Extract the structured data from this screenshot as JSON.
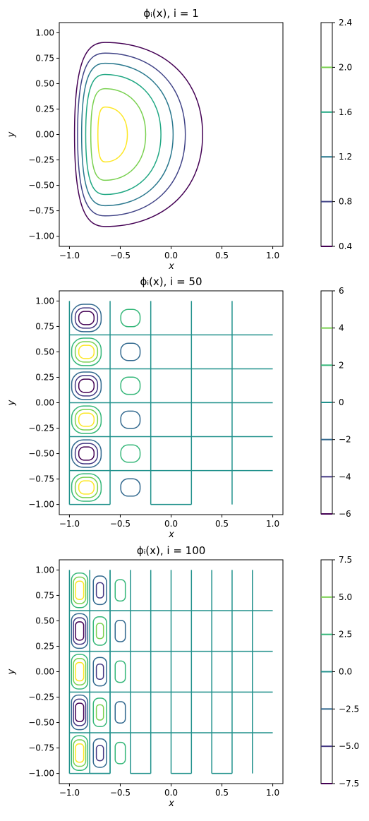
{
  "figure": {
    "background": "#ffffff"
  },
  "chart_data": [
    {
      "type": "contour",
      "title": "ϕᵢ(x), i = 1",
      "xlabel": "x",
      "ylabel": "y",
      "xlim": [
        -1.1,
        1.1
      ],
      "ylim": [
        -1.1,
        1.1
      ],
      "xticks": [
        "−1.0",
        "−0.5",
        "0.0",
        "0.5",
        "1.0"
      ],
      "xtick_values": [
        -1.0,
        -0.5,
        0.0,
        0.5,
        1.0
      ],
      "yticks": [
        "1.00",
        "0.75",
        "0.50",
        "0.25",
        "0.00",
        "−0.25",
        "−0.50",
        "−0.75",
        "−1.00"
      ],
      "ytick_values": [
        1.0,
        0.75,
        0.5,
        0.25,
        0.0,
        -0.25,
        -0.5,
        -0.75,
        -1.0
      ],
      "grid": false,
      "colormap": "viridis",
      "colorbar": {
        "ticks": [
          "2.4",
          "2.0",
          "1.6",
          "1.2",
          "0.8",
          "0.4"
        ],
        "tick_values": [
          2.4,
          2.0,
          1.6,
          1.2,
          0.8,
          0.4
        ],
        "range": [
          0.4,
          2.4
        ],
        "line_levels": [
          {
            "value": 2.0,
            "color": "#7ad151"
          },
          {
            "value": 1.6,
            "color": "#22a884"
          },
          {
            "value": 1.2,
            "color": "#2a788e"
          },
          {
            "value": 0.8,
            "color": "#414487"
          },
          {
            "value": 0.4,
            "color": "#440154"
          }
        ]
      },
      "levels": [
        {
          "value": 0.4,
          "color": "#440154",
          "cx": -0.65,
          "cy": 0.0,
          "left": -0.95,
          "right": 0.31,
          "half_height": 0.905
        },
        {
          "value": 0.8,
          "color": "#414487",
          "cx": -0.65,
          "cy": 0.0,
          "left": -0.92,
          "right": 0.14,
          "half_height": 0.8
        },
        {
          "value": 1.2,
          "color": "#2a788e",
          "cx": -0.65,
          "cy": 0.0,
          "left": -0.88,
          "right": 0.02,
          "half_height": 0.7
        },
        {
          "value": 1.6,
          "color": "#22a884",
          "cx": -0.65,
          "cy": 0.0,
          "left": -0.84,
          "right": -0.1,
          "half_height": 0.59
        },
        {
          "value": 2.0,
          "color": "#7ad151",
          "cx": -0.65,
          "cy": 0.0,
          "left": -0.79,
          "right": -0.25,
          "half_height": 0.45
        },
        {
          "value": 2.4,
          "color": "#fde725",
          "cx": -0.65,
          "cy": 0.0,
          "left": -0.72,
          "right": -0.43,
          "half_height": 0.27
        }
      ]
    },
    {
      "type": "contour",
      "title": "ϕᵢ(x), i = 50",
      "xlabel": "x",
      "ylabel": "y",
      "xlim": [
        -1.1,
        1.1
      ],
      "ylim": [
        -1.1,
        1.1
      ],
      "xticks": [
        "−1.0",
        "−0.5",
        "0.0",
        "0.5",
        "1.0"
      ],
      "xtick_values": [
        -1.0,
        -0.5,
        0.0,
        0.5,
        1.0
      ],
      "yticks": [
        "1.00",
        "0.75",
        "0.50",
        "0.25",
        "0.00",
        "−0.25",
        "−0.50",
        "−0.75",
        "−1.00"
      ],
      "ytick_values": [
        1.0,
        0.75,
        0.5,
        0.25,
        0.0,
        -0.25,
        -0.5,
        -0.75,
        -1.0
      ],
      "grid": false,
      "colormap": "viridis",
      "colorbar": {
        "ticks": [
          "6",
          "4",
          "2",
          "0",
          "−2",
          "−4",
          "−6"
        ],
        "tick_values": [
          6,
          4,
          2,
          0,
          -2,
          -4,
          -6
        ],
        "range": [
          -6,
          6
        ],
        "line_levels": [
          {
            "value": 4,
            "color": "#7ad151"
          },
          {
            "value": 2,
            "color": "#35b779"
          },
          {
            "value": 0,
            "color": "#21918c"
          },
          {
            "value": -2,
            "color": "#31688e"
          },
          {
            "value": -4,
            "color": "#443983"
          },
          {
            "value": -6,
            "color": "#440154"
          }
        ]
      },
      "zero_color": "#21918c",
      "zero_vertical_x": [
        -0.2,
        0.2,
        0.6
      ],
      "zero_horizontal_y": [
        0.667,
        0.333,
        0.0,
        -0.333,
        -0.667
      ],
      "first_column": {
        "x0": -1.0,
        "x1": -0.6
      },
      "domain": {
        "x0": -1.0,
        "x1": 1.0,
        "y0": -1.0,
        "y1": 1.0
      },
      "cells": [
        {
          "cx": -0.833,
          "cy": 0.833,
          "sign": -1,
          "kind": "main"
        },
        {
          "cx": -0.833,
          "cy": 0.5,
          "sign": 1,
          "kind": "main"
        },
        {
          "cx": -0.833,
          "cy": 0.167,
          "sign": -1,
          "kind": "main"
        },
        {
          "cx": -0.833,
          "cy": -0.167,
          "sign": 1,
          "kind": "main"
        },
        {
          "cx": -0.833,
          "cy": -0.5,
          "sign": -1,
          "kind": "main"
        },
        {
          "cx": -0.833,
          "cy": -0.833,
          "sign": 1,
          "kind": "main"
        },
        {
          "cx": -0.4,
          "cy": 0.833,
          "sign": 1,
          "kind": "side"
        },
        {
          "cx": -0.4,
          "cy": 0.5,
          "sign": -1,
          "kind": "side"
        },
        {
          "cx": -0.4,
          "cy": 0.167,
          "sign": 1,
          "kind": "side"
        },
        {
          "cx": -0.4,
          "cy": -0.167,
          "sign": -1,
          "kind": "side"
        },
        {
          "cx": -0.4,
          "cy": -0.5,
          "sign": 1,
          "kind": "side"
        },
        {
          "cx": -0.4,
          "cy": -0.833,
          "sign": -1,
          "kind": "side"
        }
      ],
      "main_rings": [
        {
          "neg": "#31688e",
          "pos": "#35b779",
          "hw": 0.145,
          "hh": 0.135
        },
        {
          "neg": "#443983",
          "pos": "#7ad151",
          "hw": 0.11,
          "hh": 0.1
        },
        {
          "neg": "#440154",
          "pos": "#fde725",
          "hw": 0.075,
          "hh": 0.065
        }
      ],
      "side_rings": [
        {
          "neg": "#31688e",
          "pos": "#35b779",
          "hw": 0.095,
          "hh": 0.085
        }
      ]
    },
    {
      "type": "contour",
      "title": "ϕᵢ(x), i = 100",
      "xlabel": "x",
      "ylabel": "y",
      "xlim": [
        -1.1,
        1.1
      ],
      "ylim": [
        -1.1,
        1.1
      ],
      "xticks": [
        "−1.0",
        "−0.5",
        "0.0",
        "0.5",
        "1.0"
      ],
      "xtick_values": [
        -1.0,
        -0.5,
        0.0,
        0.5,
        1.0
      ],
      "yticks": [
        "1.00",
        "0.75",
        "0.50",
        "0.25",
        "0.00",
        "−0.25",
        "−0.50",
        "−0.75",
        "−1.00"
      ],
      "ytick_values": [
        1.0,
        0.75,
        0.5,
        0.25,
        0.0,
        -0.25,
        -0.5,
        -0.75,
        -1.0
      ],
      "grid": false,
      "colormap": "viridis",
      "colorbar": {
        "ticks": [
          "7.5",
          "5.0",
          "2.5",
          "0.0",
          "−2.5",
          "−5.0",
          "−7.5"
        ],
        "tick_values": [
          7.5,
          5.0,
          2.5,
          0.0,
          -2.5,
          -5.0,
          -7.5
        ],
        "range": [
          -7.5,
          7.5
        ],
        "line_levels": [
          {
            "value": 5.0,
            "color": "#7ad151"
          },
          {
            "value": 2.5,
            "color": "#35b779"
          },
          {
            "value": 0.0,
            "color": "#21918c"
          },
          {
            "value": -2.5,
            "color": "#31688e"
          },
          {
            "value": -5.0,
            "color": "#443983"
          },
          {
            "value": -7.5,
            "color": "#440154"
          }
        ]
      },
      "zero_color": "#21918c",
      "zero_vertical_x": [
        -0.8,
        -0.6,
        -0.4,
        -0.2,
        0.0,
        0.2,
        0.4,
        0.6,
        0.8
      ],
      "zero_horizontal_y": [
        0.6,
        0.2,
        -0.2,
        -0.6
      ],
      "first_column": {
        "x0": -1.0,
        "x1": -0.6
      },
      "domain": {
        "x0": -1.0,
        "x1": 1.0,
        "y0": -1.0,
        "y1": 1.0
      },
      "cells": [
        {
          "cx": -0.9,
          "cy": 0.8,
          "sign": 1,
          "kind": "a"
        },
        {
          "cx": -0.9,
          "cy": 0.4,
          "sign": -1,
          "kind": "a"
        },
        {
          "cx": -0.9,
          "cy": 0.0,
          "sign": 1,
          "kind": "a"
        },
        {
          "cx": -0.9,
          "cy": -0.4,
          "sign": -1,
          "kind": "a"
        },
        {
          "cx": -0.9,
          "cy": -0.8,
          "sign": 1,
          "kind": "a"
        },
        {
          "cx": -0.7,
          "cy": 0.8,
          "sign": -1,
          "kind": "b"
        },
        {
          "cx": -0.7,
          "cy": 0.4,
          "sign": 1,
          "kind": "b"
        },
        {
          "cx": -0.7,
          "cy": 0.0,
          "sign": -1,
          "kind": "b"
        },
        {
          "cx": -0.7,
          "cy": -0.4,
          "sign": 1,
          "kind": "b"
        },
        {
          "cx": -0.7,
          "cy": -0.8,
          "sign": -1,
          "kind": "b"
        },
        {
          "cx": -0.5,
          "cy": 0.8,
          "sign": 1,
          "kind": "c"
        },
        {
          "cx": -0.5,
          "cy": 0.4,
          "sign": -1,
          "kind": "c"
        },
        {
          "cx": -0.5,
          "cy": 0.0,
          "sign": 1,
          "kind": "c"
        },
        {
          "cx": -0.5,
          "cy": -0.4,
          "sign": -1,
          "kind": "c"
        },
        {
          "cx": -0.5,
          "cy": -0.8,
          "sign": 1,
          "kind": "c"
        }
      ],
      "ring_sets": {
        "a": [
          {
            "neg": "#31688e",
            "pos": "#35b779",
            "hw": 0.08,
            "hh": 0.17
          },
          {
            "neg": "#443983",
            "pos": "#7ad151",
            "hw": 0.06,
            "hh": 0.13
          },
          {
            "neg": "#440154",
            "pos": "#fde725",
            "hw": 0.04,
            "hh": 0.09
          }
        ],
        "b": [
          {
            "neg": "#31688e",
            "pos": "#35b779",
            "hw": 0.065,
            "hh": 0.14
          },
          {
            "neg": "#443983",
            "pos": "#7ad151",
            "hw": 0.035,
            "hh": 0.075
          }
        ],
        "c": [
          {
            "neg": "#31688e",
            "pos": "#35b779",
            "hw": 0.05,
            "hh": 0.105
          }
        ]
      }
    }
  ]
}
